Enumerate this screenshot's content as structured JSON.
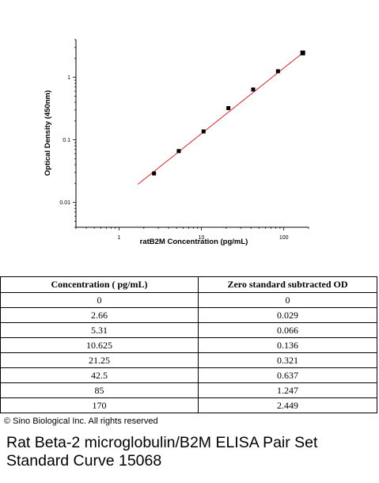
{
  "chart_data": {
    "type": "scatter",
    "title": "",
    "xlabel": "ratB2M Concentration (pg/mL)",
    "ylabel": "Optical Density (450nm)",
    "xscale": "log",
    "yscale": "log",
    "xlim": [
      0.3,
      200
    ],
    "ylim": [
      0.004,
      4
    ],
    "x_ticks": [
      1,
      10,
      100
    ],
    "x_tick_labels": [
      "1",
      "10",
      "100"
    ],
    "y_ticks": [
      0.01,
      0.1,
      1
    ],
    "y_tick_labels": [
      "0.01",
      "0.1",
      "1"
    ],
    "grid": false,
    "series": [
      {
        "x": [
          2.66,
          5.31,
          10.625,
          21.25,
          42.5,
          85,
          170
        ],
        "y": [
          0.029,
          0.066,
          0.136,
          0.321,
          0.637,
          1.247,
          2.449
        ],
        "marker": "square",
        "color": "#000000"
      }
    ],
    "fit_line": {
      "x": [
        1.7,
        170
      ],
      "y": [
        0.0195,
        2.449
      ],
      "color": "#e0201f"
    }
  },
  "table": {
    "headers": [
      "Concentration ( pg/mL)",
      "Zero standard subtracted OD"
    ],
    "rows": [
      [
        "0",
        "0"
      ],
      [
        "2.66",
        "0.029"
      ],
      [
        "5.31",
        "0.066"
      ],
      [
        "10.625",
        "0.136"
      ],
      [
        "21.25",
        "0.321"
      ],
      [
        "42.5",
        "0.637"
      ],
      [
        "85",
        "1.247"
      ],
      [
        "170",
        "2.449"
      ]
    ]
  },
  "copyright": "© Sino Biological Inc. All rights reserved",
  "caption": {
    "line1": "Rat Beta-2 microglobulin/B2M ELISA Pair Set",
    "line2": "Standard Curve 15068"
  }
}
